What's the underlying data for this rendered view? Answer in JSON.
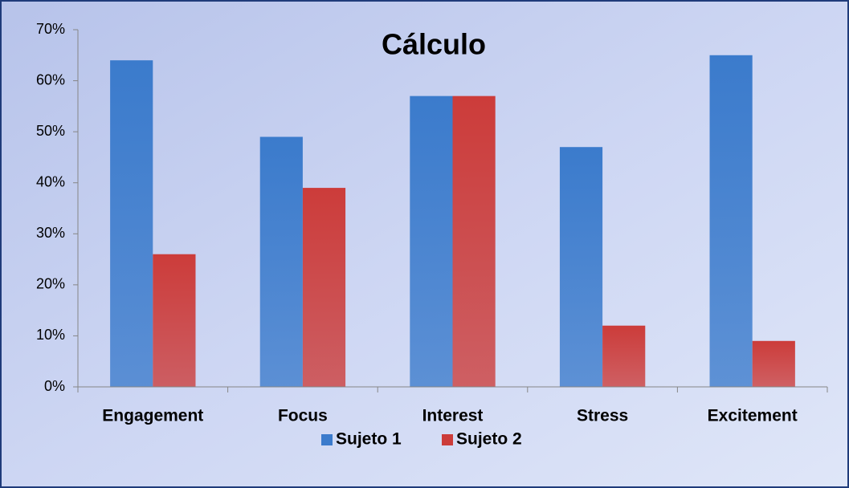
{
  "chart_data": {
    "type": "bar",
    "title": "Cálculo",
    "categories": [
      "Engagement",
      "Focus",
      "Interest",
      "Stress",
      "Excitement"
    ],
    "series": [
      {
        "name": "Sujeto 1",
        "color": "#3b7bcc",
        "values": [
          64,
          49,
          57,
          47,
          65
        ]
      },
      {
        "name": "Sujeto 2",
        "color": "#cc3c3a",
        "values": [
          26,
          39,
          57,
          12,
          9
        ]
      }
    ],
    "ylim": [
      0,
      70
    ],
    "yticks": [
      {
        "value": 0,
        "label": "0%"
      },
      {
        "value": 10,
        "label": "10%"
      },
      {
        "value": 20,
        "label": "20%"
      },
      {
        "value": 30,
        "label": "30%"
      },
      {
        "value": 40,
        "label": "40%"
      },
      {
        "value": 50,
        "label": "50%"
      },
      {
        "value": 60,
        "label": "60%"
      },
      {
        "value": 70,
        "label": "70%"
      }
    ],
    "grid": false,
    "legend": "bottom"
  }
}
